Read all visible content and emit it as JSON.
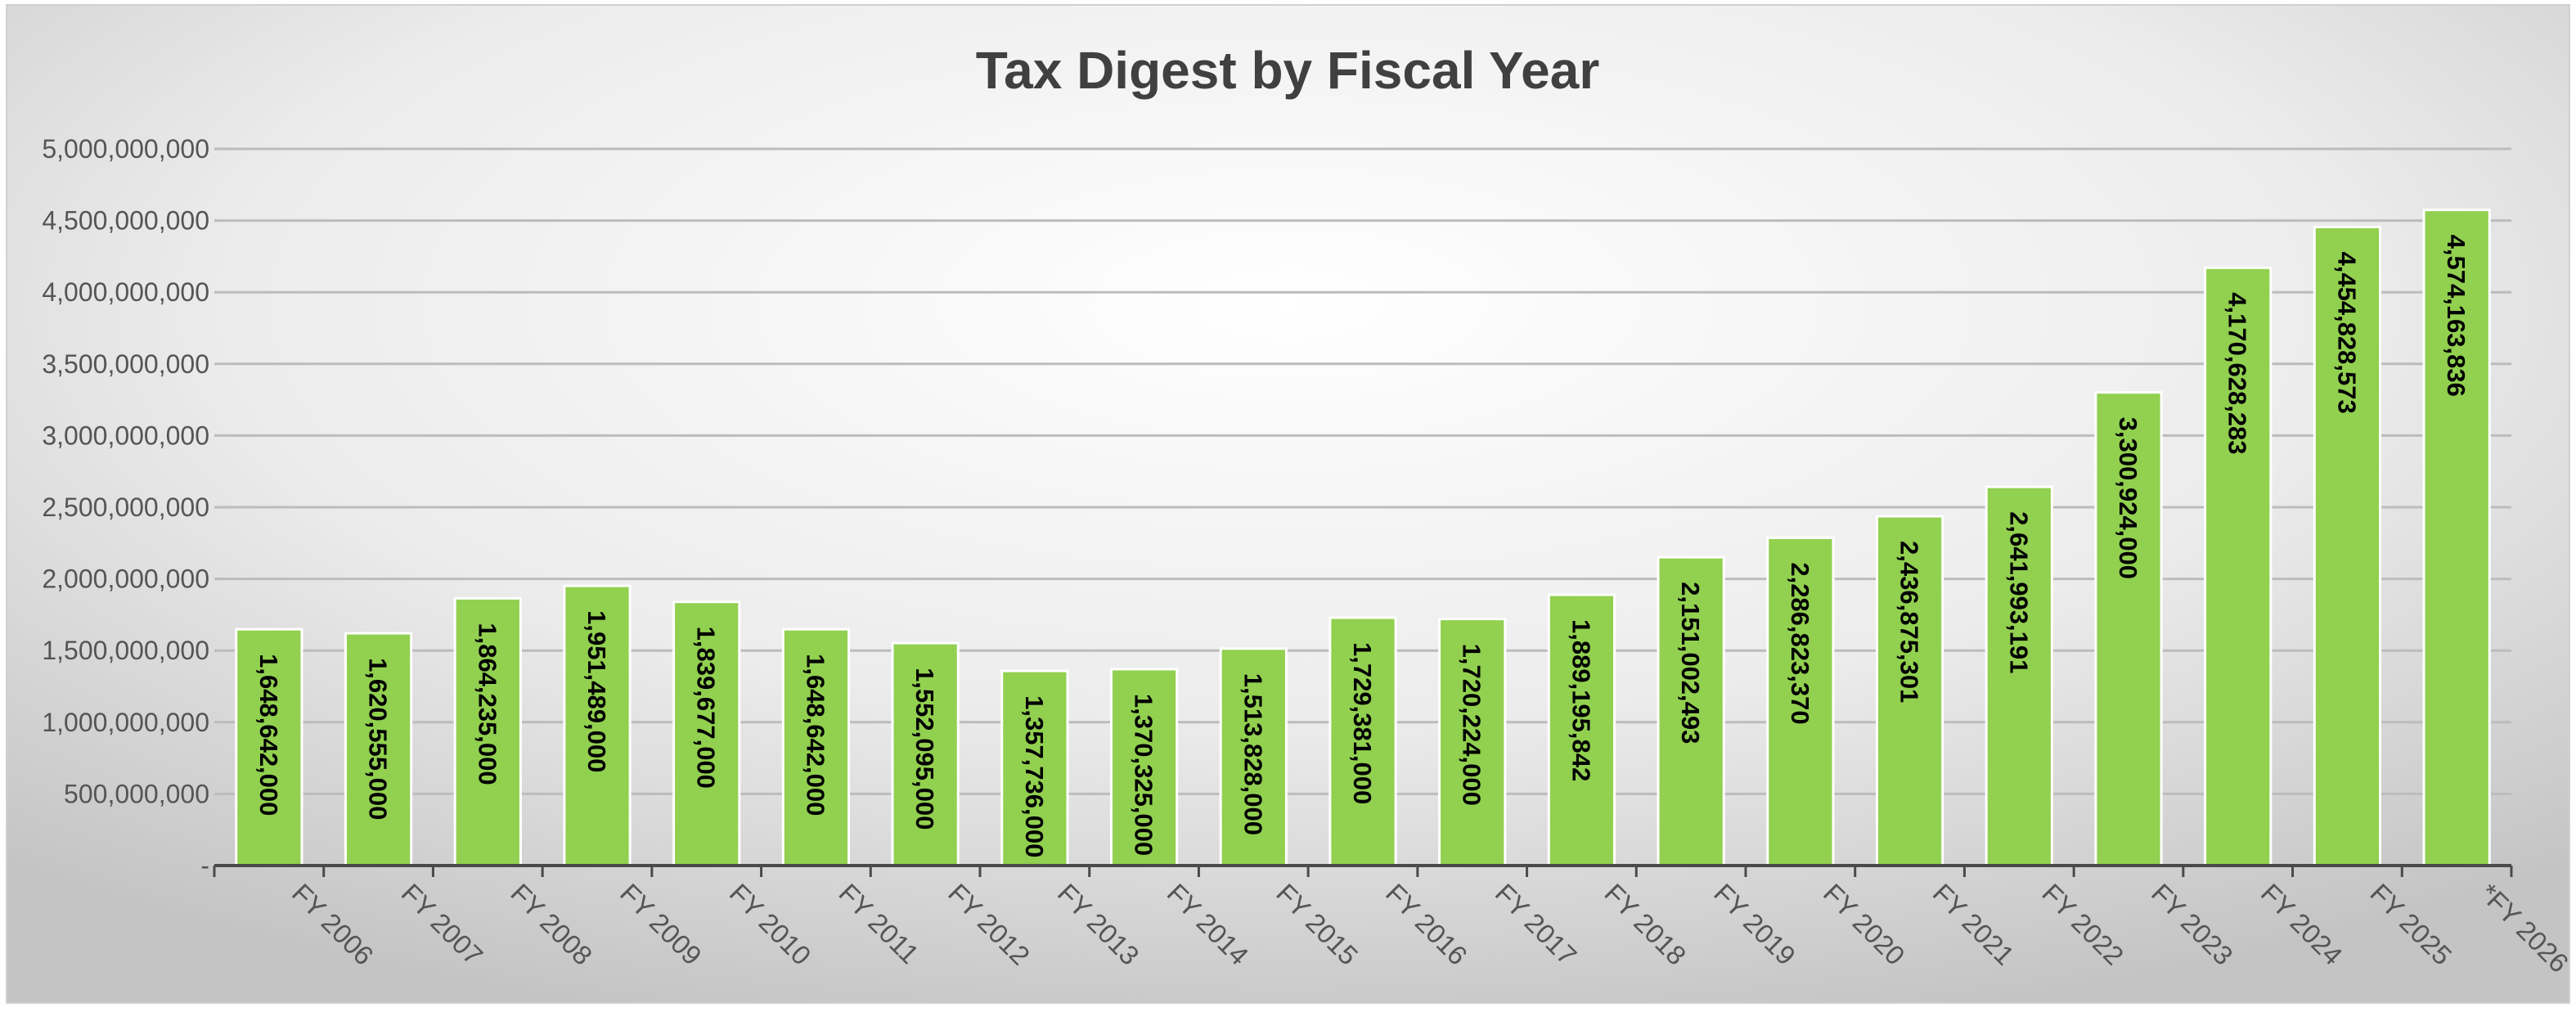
{
  "chart_data": {
    "type": "bar",
    "title": "Tax Digest by Fiscal Year",
    "xlabel": "",
    "ylabel": "",
    "ylim": [
      0,
      5000000000
    ],
    "yticks": [
      0,
      500000000,
      1000000000,
      1500000000,
      2000000000,
      2500000000,
      3000000000,
      3500000000,
      4000000000,
      4500000000,
      5000000000
    ],
    "ytick_labels": [
      "-",
      "500,000,000",
      "1,000,000,000",
      "1,500,000,000",
      "2,000,000,000",
      "2,500,000,000",
      "3,000,000,000",
      "3,500,000,000",
      "4,000,000,000",
      "4,500,000,000",
      "5,000,000,000"
    ],
    "grid": true,
    "legend": "none",
    "bar_color": "#92D050",
    "background": "radial gradient white to gray",
    "categories": [
      "FY 2006",
      "FY 2007",
      "FY 2008",
      "FY 2009",
      "FY 2010",
      "FY 2011",
      "FY 2012",
      "FY 2013",
      "FY 2014",
      "FY 2015",
      "FY 2016",
      "FY 2017",
      "FY 2018",
      "FY 2019",
      "FY 2020",
      "FY 2021",
      "FY 2022",
      "FY 2023",
      "FY 2024",
      "FY 2025",
      "*FY 2026"
    ],
    "values": [
      1648642000,
      1620555000,
      1864235000,
      1951489000,
      1839677000,
      1648642000,
      1552095000,
      1357736000,
      1370325000,
      1513828000,
      1729381000,
      1720224000,
      1889195842,
      2151002493,
      2286823370,
      2436875301,
      2641993191,
      3300924000,
      4170628283,
      4454828573,
      4574163836
    ],
    "data_labels": [
      "1,648,642,000",
      "1,620,555,000",
      "1,864,235,000",
      "1,951,489,000",
      "1,839,677,000",
      "1,648,642,000",
      "1,552,095,000",
      "1,357,736,000",
      "1,370,325,000",
      "1,513,828,000",
      "1,729,381,000",
      "1,720,224,000",
      "1,889,195,842",
      "2,151,002,493",
      "2,286,823,370",
      "2,436,875,301",
      "2,641,993,191",
      "3,300,924,000",
      "4,170,628,283",
      "4,454,828,573",
      "4,574,163,836"
    ]
  }
}
